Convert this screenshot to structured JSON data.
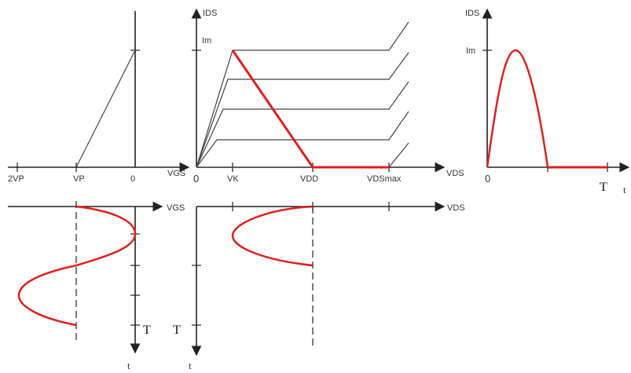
{
  "colors": {
    "axis": "#222222",
    "line": "#444444",
    "curve": "#e0201c"
  },
  "left_top": {
    "x_label_2vp": "2VP",
    "x_label_vp": "VP",
    "x_label_zero": "0",
    "x_axis_label": "VGS"
  },
  "middle_top": {
    "y_axis_label": "IDS",
    "y_tick_im": "Im",
    "x_label_zero": "0",
    "x_label_vk": "VK",
    "x_label_vdd": "VDD",
    "x_label_vdsmax": "VDSmax",
    "x_axis_label": "VDS"
  },
  "right_top": {
    "y_axis_label": "IDS",
    "y_tick_im": "Im",
    "x_label_zero": "0",
    "x_label_T": "T",
    "x_axis_label": "t"
  },
  "left_bottom": {
    "axis_label": "VGS",
    "t_label": "T",
    "time_label": "t"
  },
  "middle_bottom": {
    "axis_label": "VDS",
    "t_label": "T",
    "time_label": "t"
  }
}
